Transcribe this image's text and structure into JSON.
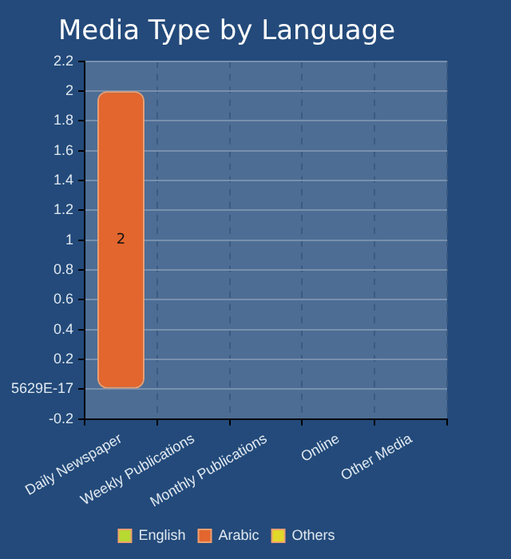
{
  "chart_data": {
    "type": "bar",
    "title": "Media Type by Language",
    "categories": [
      "Daily Newspaper",
      "Weekly Publications",
      "Monthly Publications",
      "Online",
      "Other Media"
    ],
    "series": [
      {
        "name": "English",
        "color": "#b8d832",
        "values": [
          null,
          null,
          null,
          null,
          null
        ]
      },
      {
        "name": "Arabic",
        "color": "#e2662e",
        "values": [
          2,
          null,
          null,
          null,
          null
        ]
      },
      {
        "name": "Others",
        "color": "#e0d82a",
        "values": [
          null,
          null,
          null,
          null,
          null
        ]
      }
    ],
    "ylim": [
      -0.2,
      2.2
    ],
    "yticks": [
      -0.2,
      {
        "value": 0,
        "label": "5629E-17"
      },
      0.2,
      0.4,
      0.6,
      0.8,
      1,
      1.2,
      1.4,
      1.6,
      1.8,
      2,
      2.2
    ],
    "grid": true,
    "legend": "bottom",
    "data_labels": true
  }
}
